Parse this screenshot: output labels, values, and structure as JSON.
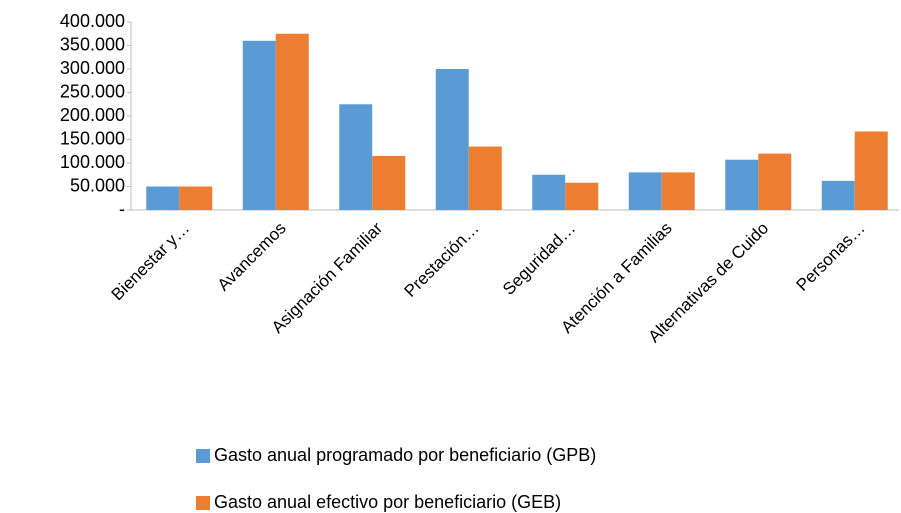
{
  "chart_data": {
    "type": "bar",
    "categories": [
      "Bienestar y…",
      "Avancemos",
      "Asignación Familiar",
      "Prestación…",
      "Seguridad…",
      "Atención a Familias",
      "Alternativas de Cuido",
      "Personas…"
    ],
    "series": [
      {
        "name": "Gasto anual programado por beneficiario (GPB)",
        "color": "#5b9bd5",
        "values": [
          50000,
          360000,
          225000,
          300000,
          75000,
          80000,
          107000,
          62000
        ]
      },
      {
        "name": "Gasto anual efectivo por beneficiario (GEB)",
        "color": "#ed7d31",
        "values": [
          50000,
          375000,
          115000,
          135000,
          58000,
          80000,
          120000,
          167000
        ]
      }
    ],
    "ylim": [
      0,
      400000
    ],
    "yticks": [
      {
        "value": 0,
        "label": "-"
      },
      {
        "value": 50000,
        "label": "50.000"
      },
      {
        "value": 100000,
        "label": "100.000"
      },
      {
        "value": 150000,
        "label": "150.000"
      },
      {
        "value": 200000,
        "label": "200.000"
      },
      {
        "value": 250000,
        "label": "250.000"
      },
      {
        "value": 300000,
        "label": "300.000"
      },
      {
        "value": 350000,
        "label": "350.000"
      },
      {
        "value": 400000,
        "label": "400.000"
      }
    ],
    "legend": "bottom"
  }
}
